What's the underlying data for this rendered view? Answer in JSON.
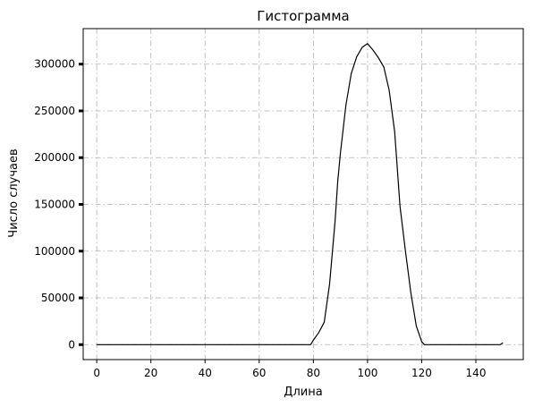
{
  "chart_data": {
    "type": "line",
    "title": "Гистограмма",
    "xlabel": "Длина",
    "ylabel": "Число случаев",
    "xlim": [
      -5,
      157.5
    ],
    "ylim": [
      -16000,
      338000
    ],
    "xticks": [
      0,
      20,
      40,
      60,
      80,
      100,
      120,
      140
    ],
    "yticks": [
      0,
      50000,
      100000,
      150000,
      200000,
      250000,
      300000
    ],
    "grid": true,
    "legend": "none",
    "series": [
      {
        "color": "#000000",
        "x": [
          0,
          10,
          20,
          30,
          40,
          50,
          60,
          70,
          79,
          80,
          82,
          84,
          86,
          88,
          89,
          90,
          92,
          94,
          96,
          98,
          100,
          102,
          104,
          106,
          108,
          110,
          112,
          114,
          116,
          118,
          120,
          121,
          122,
          130,
          140,
          149,
          150
        ],
        "y": [
          0,
          0,
          0,
          0,
          0,
          0,
          0,
          0,
          0,
          5000,
          13000,
          24000,
          65000,
          132000,
          175000,
          205000,
          256000,
          290000,
          308000,
          318000,
          322000,
          315000,
          307000,
          297000,
          272000,
          228000,
          148000,
          100000,
          55000,
          20000,
          3000,
          0,
          0,
          0,
          0,
          0,
          2000
        ]
      }
    ]
  }
}
